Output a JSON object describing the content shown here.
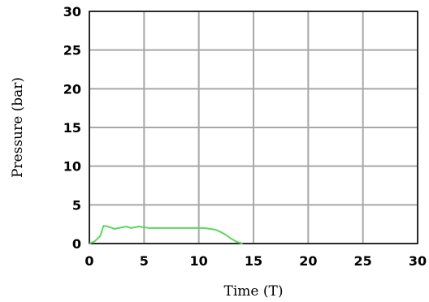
{
  "chart_data": {
    "type": "line",
    "xlabel": "Time (T)",
    "ylabel": "Pressure (bar)",
    "xlim": [
      0,
      30
    ],
    "ylim": [
      0,
      30
    ],
    "xticks": [
      0,
      5,
      10,
      15,
      20,
      25,
      30
    ],
    "yticks": [
      0,
      5,
      10,
      15,
      20,
      25,
      30
    ],
    "grid": true,
    "series": [
      {
        "color": "#5cd65c",
        "x": [
          0,
          0.5,
          1.0,
          1.3,
          1.7,
          2.3,
          3.0,
          3.4,
          3.8,
          4.5,
          5.0,
          5.5,
          6.0,
          8.0,
          10.0,
          10.5,
          11.0,
          11.5,
          12.0,
          12.5,
          13.0,
          13.5,
          14.0
        ],
        "y": [
          0,
          0.3,
          1.0,
          2.3,
          2.2,
          1.9,
          2.1,
          2.2,
          2.0,
          2.2,
          2.1,
          2.0,
          2.0,
          2.0,
          2.0,
          2.0,
          1.9,
          1.8,
          1.5,
          1.1,
          0.6,
          0.2,
          0
        ]
      }
    ]
  }
}
